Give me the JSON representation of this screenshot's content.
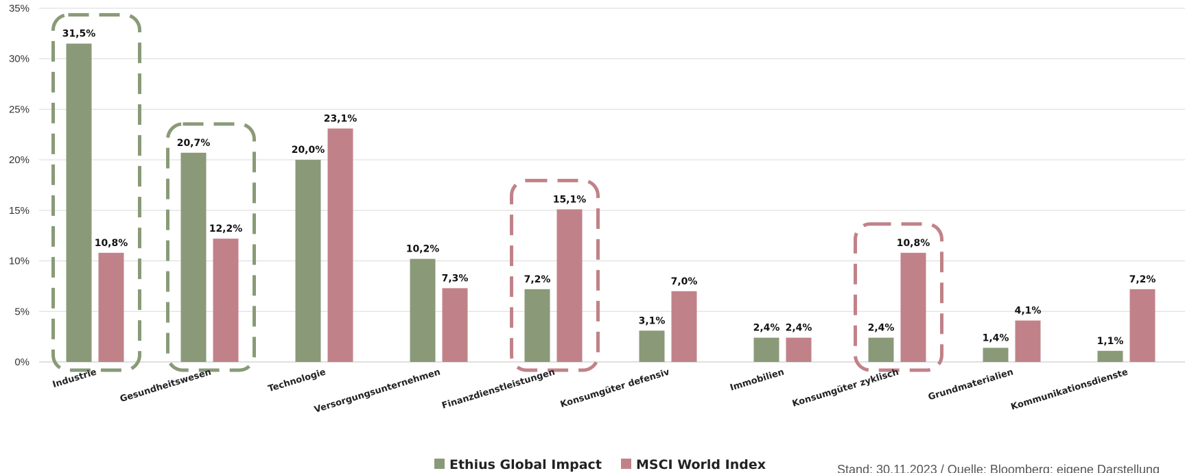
{
  "chart_data": {
    "type": "bar",
    "ylim": [
      0,
      35
    ],
    "yticks": [
      "0%",
      "5%",
      "10%",
      "15%",
      "20%",
      "25%",
      "30%",
      "35%"
    ],
    "grid": true,
    "legend_position": "bottom-center",
    "categories": [
      "Industrie",
      "Gesundheitswesen",
      "Technologie",
      "Versorgungsunternehmen",
      "Finanzdienstleistungen",
      "Konsumgüter defensiv",
      "Immobilien",
      "Konsumgüter zyklisch",
      "Grundmaterialien",
      "Kommunikationsdienste"
    ],
    "series": [
      {
        "name": "Ethius Global Impact",
        "color": "#8a9a78",
        "values": [
          31.5,
          20.7,
          20.0,
          10.2,
          7.2,
          3.1,
          2.4,
          2.4,
          1.4,
          1.1
        ],
        "labels": [
          "31,5%",
          "20,7%",
          "20,0%",
          "10,2%",
          "7,2%",
          "3,1%",
          "2,4%",
          "2,4%",
          "1,4%",
          "1,1%"
        ]
      },
      {
        "name": "MSCI World Index",
        "color": "#c08288",
        "values": [
          10.8,
          12.2,
          23.1,
          7.3,
          15.1,
          7.0,
          2.4,
          10.8,
          4.1,
          7.2
        ],
        "labels": [
          "10,8%",
          "12,2%",
          "23,1%",
          "7,3%",
          "15,1%",
          "7,0%",
          "2,4%",
          "10,8%",
          "4,1%",
          "7,2%"
        ]
      }
    ],
    "highlights": [
      {
        "category_index": 0,
        "color": "#8a9a78"
      },
      {
        "category_index": 1,
        "color": "#8a9a78"
      },
      {
        "category_index": 4,
        "color": "#c08288"
      },
      {
        "category_index": 7,
        "color": "#c08288"
      }
    ],
    "colors": {
      "grid": "#d9d9d9",
      "axis": "#bfbfbf"
    }
  },
  "footer": {
    "source": "Stand: 30.11.2023 / Quelle: Bloomberg; eigene Darstellung"
  }
}
